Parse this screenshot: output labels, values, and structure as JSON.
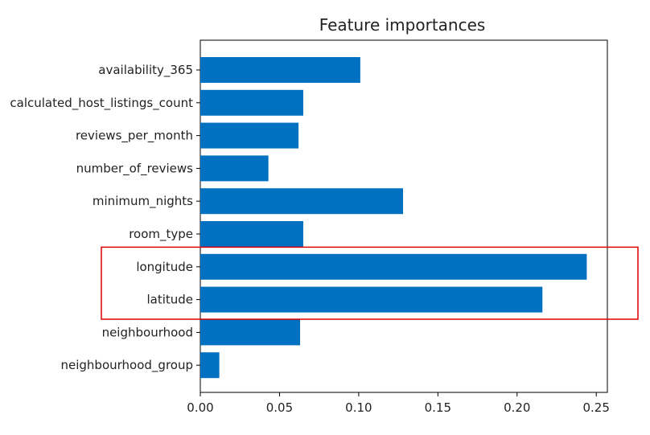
{
  "chart_data": {
    "type": "bar",
    "orientation": "horizontal",
    "title": "Feature importances",
    "xlabel": "",
    "ylabel": "",
    "categories": [
      "availability_365",
      "calculated_host_listings_count",
      "reviews_per_month",
      "number_of_reviews",
      "minimum_nights",
      "room_type",
      "longitude",
      "latitude",
      "neighbourhood",
      "neighbourhood_group"
    ],
    "values": [
      0.101,
      0.065,
      0.062,
      0.043,
      0.128,
      0.065,
      0.244,
      0.216,
      0.063,
      0.012
    ],
    "xlim": [
      0.0,
      0.257
    ],
    "xticks": [
      0.0,
      0.05,
      0.1,
      0.15,
      0.2,
      0.25
    ],
    "xtick_labels": [
      "0.00",
      "0.05",
      "0.10",
      "0.15",
      "0.20",
      "0.25"
    ],
    "grid": false,
    "bar_color": "#0070C0",
    "highlight": {
      "categories": [
        "longitude",
        "latitude"
      ],
      "color": "#E00000"
    }
  }
}
